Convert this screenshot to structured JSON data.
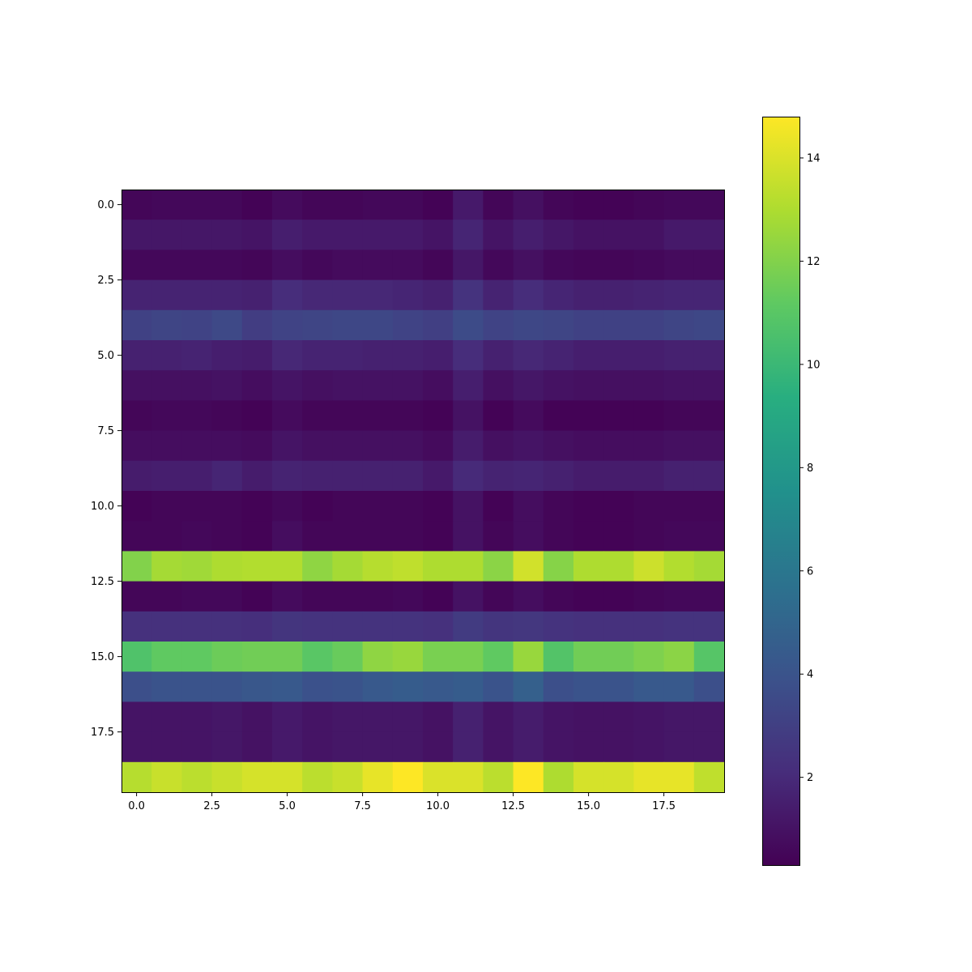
{
  "chart_data": {
    "type": "heatmap",
    "title": "",
    "xlabel": "",
    "ylabel": "",
    "x_ticks": [
      "0.0",
      "2.5",
      "5.0",
      "7.5",
      "10.0",
      "12.5",
      "15.0",
      "17.5"
    ],
    "y_ticks": [
      "0.0",
      "2.5",
      "5.0",
      "7.5",
      "10.0",
      "12.5",
      "15.0",
      "17.5"
    ],
    "x_range": [
      -0.5,
      19.5
    ],
    "y_range": [
      -0.5,
      19.5
    ],
    "colormap": "viridis",
    "colorbar": {
      "min": 0.3,
      "max": 14.8,
      "ticks": [
        "2",
        "4",
        "6",
        "8",
        "10",
        "12",
        "14"
      ]
    },
    "grid": false,
    "values": [
      [
        0.5,
        0.6,
        0.6,
        0.6,
        0.4,
        0.7,
        0.5,
        0.5,
        0.6,
        0.6,
        0.4,
        1.3,
        0.5,
        0.9,
        0.5,
        0.4,
        0.4,
        0.5,
        0.6,
        0.6
      ],
      [
        1.2,
        1.2,
        1.2,
        1.2,
        1.1,
        1.5,
        1.3,
        1.3,
        1.3,
        1.3,
        1.1,
        1.8,
        1.1,
        1.5,
        1.2,
        1.0,
        1.0,
        1.0,
        1.3,
        1.3
      ],
      [
        0.6,
        0.6,
        0.6,
        0.6,
        0.5,
        0.8,
        0.6,
        0.7,
        0.7,
        0.7,
        0.5,
        1.2,
        0.6,
        0.9,
        0.6,
        0.5,
        0.5,
        0.6,
        0.7,
        0.7
      ],
      [
        1.7,
        1.7,
        1.7,
        1.7,
        1.6,
        2.1,
        1.9,
        1.9,
        1.9,
        1.8,
        1.6,
        2.4,
        1.7,
        2.1,
        1.8,
        1.6,
        1.6,
        1.7,
        1.8,
        1.8
      ],
      [
        3.1,
        3.3,
        3.2,
        3.5,
        2.9,
        3.2,
        3.3,
        3.4,
        3.4,
        3.2,
        3.0,
        3.6,
        3.2,
        3.4,
        3.3,
        3.1,
        3.1,
        3.1,
        3.3,
        3.4
      ],
      [
        1.6,
        1.6,
        1.7,
        1.5,
        1.4,
        1.9,
        1.7,
        1.7,
        1.6,
        1.6,
        1.5,
        2.1,
        1.6,
        1.9,
        1.7,
        1.5,
        1.5,
        1.5,
        1.6,
        1.6
      ],
      [
        0.9,
        0.9,
        0.9,
        1.0,
        0.8,
        1.1,
        0.9,
        1.0,
        1.0,
        1.0,
        0.8,
        1.5,
        0.9,
        1.2,
        1.0,
        0.9,
        0.9,
        0.9,
        1.0,
        1.0
      ],
      [
        0.5,
        0.6,
        0.6,
        0.5,
        0.4,
        0.7,
        0.5,
        0.5,
        0.5,
        0.5,
        0.4,
        1.0,
        0.4,
        0.7,
        0.4,
        0.4,
        0.4,
        0.4,
        0.5,
        0.5
      ],
      [
        0.8,
        0.8,
        0.8,
        0.8,
        0.7,
        1.1,
        0.9,
        0.9,
        0.9,
        0.9,
        0.7,
        1.4,
        0.9,
        1.1,
        0.9,
        0.8,
        0.8,
        0.8,
        0.9,
        0.9
      ],
      [
        1.4,
        1.5,
        1.5,
        1.8,
        1.4,
        1.7,
        1.6,
        1.6,
        1.6,
        1.6,
        1.3,
        2.0,
        1.7,
        1.8,
        1.6,
        1.4,
        1.4,
        1.4,
        1.6,
        1.6
      ],
      [
        0.4,
        0.5,
        0.5,
        0.5,
        0.4,
        0.6,
        0.4,
        0.5,
        0.5,
        0.5,
        0.4,
        1.0,
        0.4,
        0.8,
        0.5,
        0.4,
        0.4,
        0.5,
        0.5,
        0.5
      ],
      [
        0.5,
        0.5,
        0.6,
        0.5,
        0.4,
        0.8,
        0.5,
        0.5,
        0.5,
        0.5,
        0.4,
        1.0,
        0.5,
        0.8,
        0.5,
        0.4,
        0.4,
        0.5,
        0.6,
        0.6
      ],
      [
        12.0,
        12.8,
        12.7,
        13.0,
        13.1,
        13.1,
        12.3,
        12.8,
        13.2,
        13.4,
        13.0,
        13.0,
        12.2,
        13.8,
        12.1,
        13.0,
        13.0,
        13.7,
        13.1,
        12.8
      ],
      [
        0.5,
        0.5,
        0.6,
        0.6,
        0.4,
        0.7,
        0.5,
        0.5,
        0.5,
        0.6,
        0.4,
        1.0,
        0.5,
        0.8,
        0.5,
        0.4,
        0.4,
        0.5,
        0.6,
        0.6
      ],
      [
        2.3,
        2.3,
        2.3,
        2.3,
        2.2,
        2.5,
        2.4,
        2.4,
        2.4,
        2.4,
        2.3,
        2.8,
        2.5,
        2.6,
        2.4,
        2.3,
        2.3,
        2.3,
        2.4,
        2.4
      ],
      [
        10.7,
        11.2,
        11.2,
        11.5,
        11.6,
        11.6,
        11.0,
        11.4,
        12.3,
        12.5,
        11.8,
        11.8,
        11.2,
        12.5,
        10.8,
        11.6,
        11.6,
        11.9,
        12.2,
        10.9
      ],
      [
        3.8,
        4.0,
        4.0,
        4.0,
        4.2,
        4.3,
        3.9,
        4.0,
        4.3,
        4.5,
        4.3,
        4.5,
        4.0,
        4.7,
        3.8,
        4.0,
        4.0,
        4.3,
        4.3,
        3.8
      ],
      [
        1.1,
        1.1,
        1.1,
        1.2,
        1.0,
        1.3,
        1.1,
        1.2,
        1.2,
        1.2,
        1.0,
        1.6,
        1.1,
        1.4,
        1.1,
        1.0,
        1.0,
        1.1,
        1.2,
        1.2
      ],
      [
        1.1,
        1.1,
        1.1,
        1.2,
        1.0,
        1.3,
        1.1,
        1.2,
        1.2,
        1.2,
        1.0,
        1.6,
        1.1,
        1.4,
        1.1,
        1.0,
        1.0,
        1.1,
        1.2,
        1.2
      ],
      [
        13.2,
        13.6,
        13.3,
        13.6,
        13.9,
        13.9,
        13.3,
        13.6,
        14.3,
        14.8,
        14.0,
        14.0,
        13.3,
        14.8,
        13.0,
        13.9,
        13.9,
        14.3,
        14.3,
        13.4
      ]
    ]
  }
}
